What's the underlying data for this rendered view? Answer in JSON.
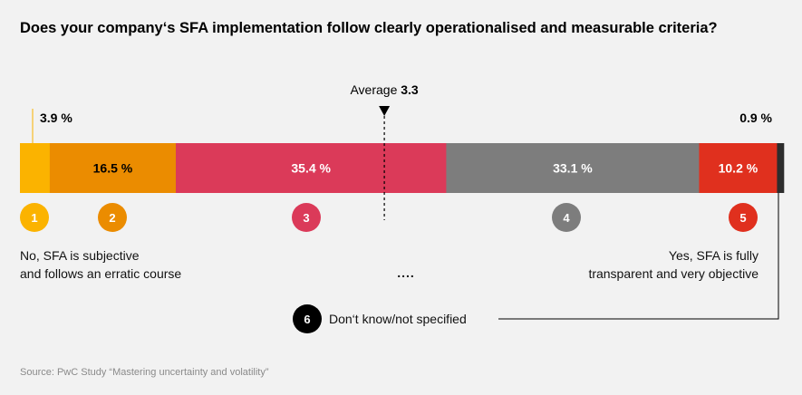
{
  "chart_data": {
    "type": "bar",
    "title": "Does your company‘s SFA implementation follow clearly operationalised and measurable criteria?",
    "categories": [
      "1",
      "2",
      "3",
      "4",
      "5",
      "6"
    ],
    "values": [
      3.9,
      16.5,
      35.4,
      33.1,
      10.2,
      0.9
    ],
    "value_labels": [
      "3.9 %",
      "16.5 %",
      "35.4 %",
      "33.1 %",
      "10.2 %",
      "0.9 %"
    ],
    "colors": [
      "#fbb300",
      "#eb8c00",
      "#db3a59",
      "#7d7d7d",
      "#e0301e",
      "#2d2d2d"
    ],
    "average": {
      "label": "Average",
      "value": 3.3,
      "value_label": "3.3"
    },
    "scale_labels": {
      "left": [
        "No, SFA is subjective",
        "and follows an erratic course"
      ],
      "middle": "....",
      "right": [
        "Yes, SFA is fully",
        "transparent and very objective"
      ]
    },
    "dont_know_label": "Don‘t know/not specified",
    "source": "Source: PwC Study “Mastering uncertainty and volatility”"
  }
}
